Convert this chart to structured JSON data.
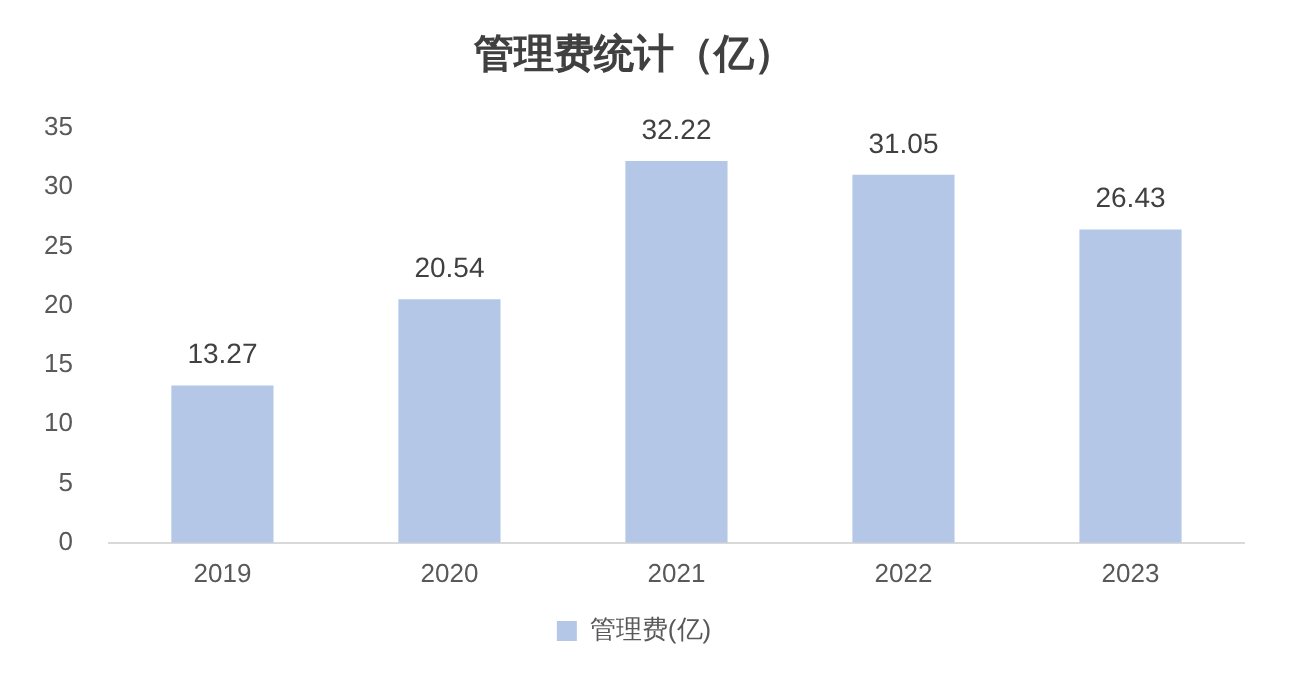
{
  "chart_data": {
    "type": "bar",
    "title": "管理费统计（亿）",
    "categories": [
      "2019",
      "2020",
      "2021",
      "2022",
      "2023"
    ],
    "series": [
      {
        "name": "管理费(亿)",
        "color": "#b4c7e7",
        "values": [
          13.27,
          20.54,
          32.22,
          31.05,
          26.43
        ]
      }
    ],
    "ylim": [
      0,
      35
    ],
    "yticks": [
      0,
      5,
      10,
      15,
      20,
      25,
      30,
      35
    ],
    "grid": false,
    "legend": "bottom",
    "data_labels": true
  }
}
